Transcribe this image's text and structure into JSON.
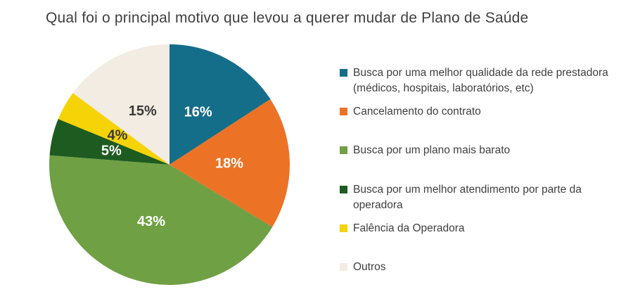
{
  "colors": {
    "background": "#ffffff",
    "title_text": "#3f3f3f",
    "legend_text": "#3f3f3f",
    "dark_value_label": "#3a3a3a",
    "light_value_label": "#ffffff"
  },
  "chart_data": {
    "type": "pie",
    "title": "Qual foi o principal motivo que levou a querer mudar de Plano de Saúde",
    "direction": "clockwise",
    "start_angle_deg": 0,
    "legend_position": "right",
    "slices": [
      {
        "label": "Busca por uma melhor qualidade da rede prestadora (médicos, hospitais, laboratórios, etc)",
        "value": 16,
        "display": "16%",
        "color": "#146e8a",
        "label_color": "#ffffff"
      },
      {
        "label": "Cancelamento do contrato",
        "value": 18,
        "display": "18%",
        "color": "#ec7225",
        "label_color": "#ffffff"
      },
      {
        "label": "Busca por um plano mais barato",
        "value": 43,
        "display": "43%",
        "color": "#6fa044",
        "label_color": "#ffffff"
      },
      {
        "label": "Busca por um melhor atendimento por parte da operadora",
        "value": 5,
        "display": "5%",
        "color": "#1e5b20",
        "label_color": "#ffffff"
      },
      {
        "label": "Falência da Operadora",
        "value": 4,
        "display": "4%",
        "color": "#f5d306",
        "label_color": "#3a3a3a"
      },
      {
        "label": "Outros",
        "value": 15,
        "display": "15%",
        "color": "#f3ece2",
        "label_color": "#3a3a3a"
      }
    ]
  }
}
